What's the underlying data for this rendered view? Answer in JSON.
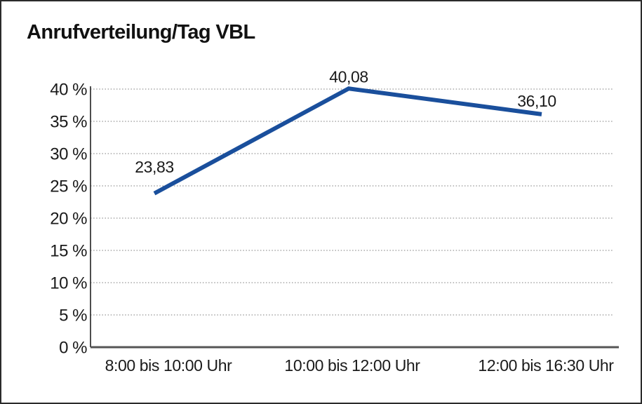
{
  "title": "Anrufverteilung/Tag VBL",
  "chart_data": {
    "type": "line",
    "title": "Anrufverteilung/Tag VBL",
    "categories": [
      "8:00 bis 10:00 Uhr",
      "10:00 bis 12:00 Uhr",
      "12:00 bis 16:30 Uhr"
    ],
    "values": [
      23.83,
      40.08,
      36.1
    ],
    "point_labels": [
      "23,83",
      "40,08",
      "36,10"
    ],
    "ytick_values": [
      0,
      5,
      10,
      15,
      20,
      25,
      30,
      35,
      40
    ],
    "ytick_labels": [
      "0 %",
      "5 %",
      "10 %",
      "15 %",
      "20 %",
      "25 %",
      "30 %",
      "35 %",
      "40 %"
    ],
    "ylim": [
      0,
      40
    ],
    "xlabel": "",
    "ylabel": "",
    "grid": "horizontal-dotted",
    "legend": "none"
  },
  "colors": {
    "line": "#1a4f9c",
    "gridline": "#7b7b7b",
    "y_axis": "#222222",
    "x_axis": "#555555",
    "text": "#1a1a1a",
    "frame": "#2b2b2b",
    "background": "#ffffff"
  }
}
